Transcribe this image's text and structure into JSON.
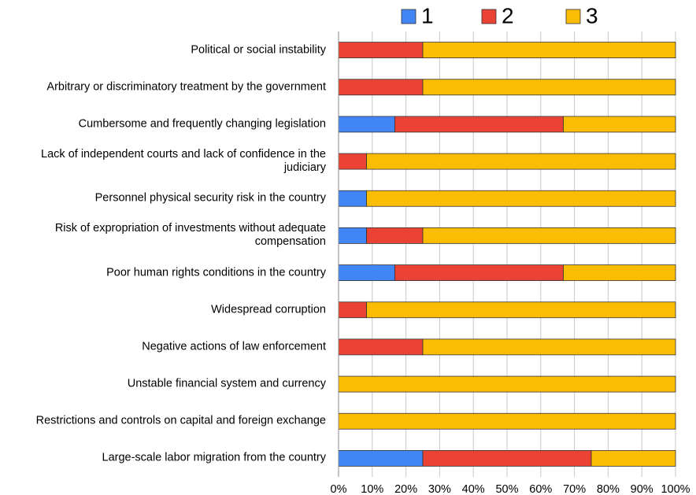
{
  "chart_data": {
    "type": "bar",
    "orientation": "horizontal",
    "stacked": true,
    "categories": [
      "Political or social instability",
      "Arbitrary or discriminatory treatment by the government",
      "Cumbersome and frequently changing legislation",
      "Lack of independent courts and lack of confidence in the judiciary",
      "Personnel physical security risk in the country",
      "Risk of expropriation of investments without adequate compensation",
      "Poor human rights conditions in the country",
      "Widespread corruption",
      "Negative actions of law enforcement",
      "Unstable financial system and currency",
      "Restrictions and controls on capital and foreign exchange",
      "Large-scale labor migration from the country"
    ],
    "series": [
      {
        "name": "1",
        "color": "#4285f4",
        "values": [
          0,
          0,
          16.7,
          0,
          8.3,
          8.3,
          16.7,
          0,
          0,
          0,
          0,
          25
        ]
      },
      {
        "name": "2",
        "color": "#ea4335",
        "values": [
          25,
          25,
          50,
          8.3,
          0,
          16.7,
          50,
          8.3,
          25,
          0,
          0,
          50
        ]
      },
      {
        "name": "3",
        "color": "#fbbc04",
        "values": [
          75,
          75,
          33.3,
          91.7,
          91.7,
          75,
          33.3,
          91.7,
          75,
          100,
          100,
          25
        ]
      }
    ],
    "xlim": [
      0,
      100
    ],
    "xticks": [
      {
        "value": 0,
        "label": "0%"
      },
      {
        "value": 10,
        "label": "10%"
      },
      {
        "value": 20,
        "label": "20%"
      },
      {
        "value": 30,
        "label": "30%"
      },
      {
        "value": 40,
        "label": "40%"
      },
      {
        "value": 50,
        "label": "50%"
      },
      {
        "value": 60,
        "label": "60%"
      },
      {
        "value": 70,
        "label": "70%"
      },
      {
        "value": 80,
        "label": "80%"
      },
      {
        "value": 90,
        "label": "90%"
      },
      {
        "value": 100,
        "label": "100%"
      }
    ],
    "grid": true,
    "legend": "top"
  }
}
